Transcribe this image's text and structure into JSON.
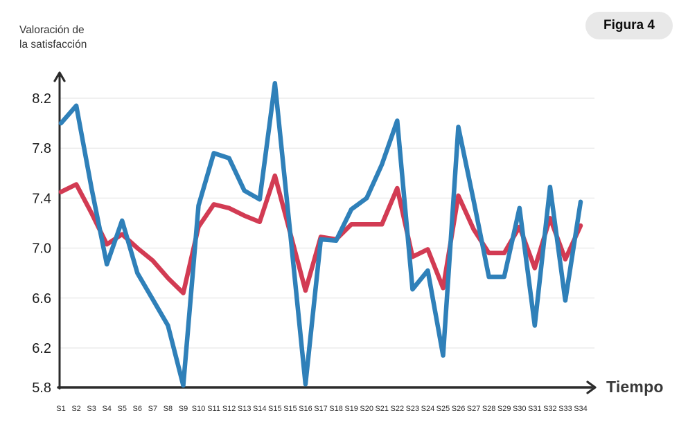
{
  "header": {
    "figure_badge": "Figura 4"
  },
  "chart_data": {
    "type": "line",
    "title": "",
    "ylabel": "Valoración de\nla satisfacción",
    "xlabel": "Tiempo",
    "categories": [
      "S1",
      "S2",
      "S3",
      "S4",
      "S5",
      "S6",
      "S7",
      "S8",
      "S9",
      "S10",
      "S11",
      "S12",
      "S13",
      "S14",
      "S15",
      "S15",
      "S16",
      "S17",
      "S18",
      "S19",
      "S20",
      "S21",
      "S22",
      "S23",
      "S24",
      "S25",
      "S26",
      "S27",
      "S28",
      "S29",
      "S30",
      "S31",
      "S32",
      "S33",
      "S34"
    ],
    "yticks": [
      8.2,
      7.8,
      7.4,
      7.0,
      6.6,
      6.2,
      5.8
    ],
    "ylim": [
      5.8,
      8.45
    ],
    "grid": true,
    "legend_position": "none",
    "colors": {
      "axis": "#2b2b2b",
      "gridline": "#ececec",
      "tick_text": "#1c1c1c",
      "category_text": "#2b2b2b",
      "serie_azul": "#2F80B9",
      "serie_roja": "#D23B53"
    },
    "series": [
      {
        "name": "serie-azul",
        "color": "#2F80B9",
        "values": [
          8.0,
          8.14,
          7.48,
          6.87,
          7.22,
          6.8,
          6.59,
          6.38,
          5.9,
          7.34,
          7.76,
          7.72,
          7.46,
          7.39,
          8.32,
          7.12,
          5.91,
          7.07,
          7.06,
          7.31,
          7.4,
          7.67,
          8.02,
          6.67,
          6.82,
          6.14,
          7.97,
          7.38,
          6.77,
          6.77,
          7.32,
          6.38,
          7.49,
          6.58,
          7.37
        ]
      },
      {
        "name": "serie-roja",
        "color": "#D23B53",
        "values": [
          7.45,
          7.51,
          7.28,
          7.03,
          7.11,
          7.0,
          6.9,
          6.76,
          6.64,
          7.17,
          7.35,
          7.32,
          7.26,
          7.21,
          7.58,
          7.12,
          6.66,
          7.09,
          7.07,
          7.19,
          7.19,
          7.19,
          7.48,
          6.93,
          6.99,
          6.68,
          7.42,
          7.15,
          6.96,
          6.96,
          7.17,
          6.84,
          7.24,
          6.91,
          7.18
        ]
      }
    ]
  }
}
